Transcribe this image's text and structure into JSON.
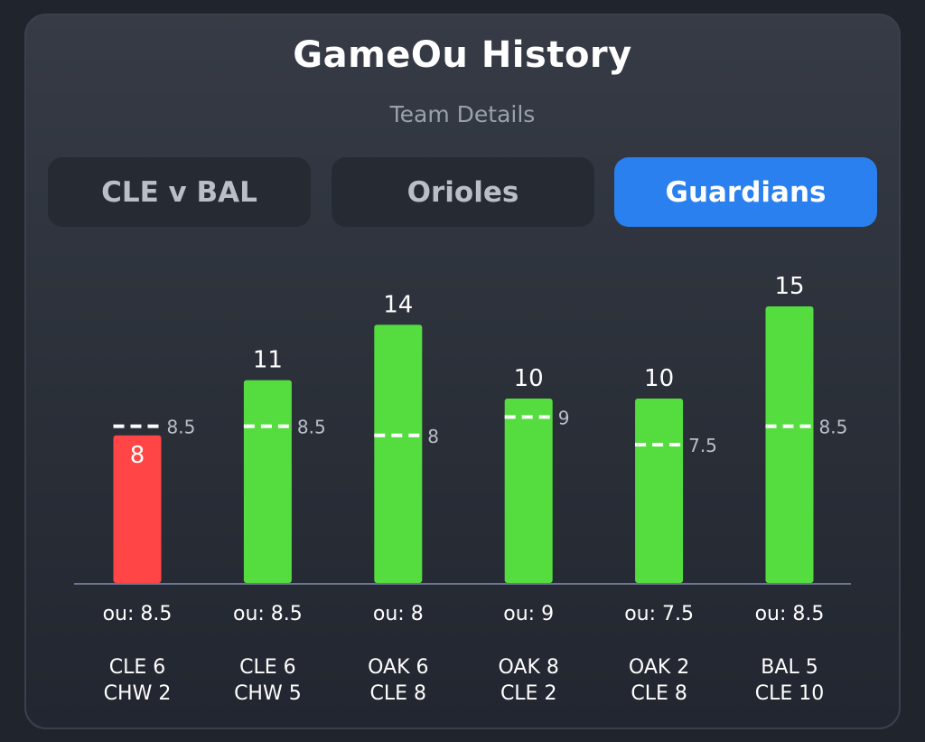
{
  "header": {
    "title": "GameOu History",
    "subtitle": "Team Details"
  },
  "tabs": [
    {
      "label": "CLE v BAL",
      "active": false
    },
    {
      "label": "Orioles",
      "active": false
    },
    {
      "label": "Guardians",
      "active": true
    }
  ],
  "colors": {
    "over": "#55dd40",
    "under": "#ff4545",
    "active_tab": "#2a80ef"
  },
  "chart_data": {
    "type": "bar",
    "categories": [
      {
        "ou_label": "ou: 8.5",
        "line1": "CLE 6",
        "line2": "CHW 2"
      },
      {
        "ou_label": "ou: 8.5",
        "line1": "CLE 6",
        "line2": "CHW 5"
      },
      {
        "ou_label": "ou: 8",
        "line1": "OAK 6",
        "line2": "CLE 8"
      },
      {
        "ou_label": "ou: 9",
        "line1": "OAK 8",
        "line2": "CLE 2"
      },
      {
        "ou_label": "ou: 7.5",
        "line1": "OAK 2",
        "line2": "CLE 8"
      },
      {
        "ou_label": "ou: 8.5",
        "line1": "BAL 5",
        "line2": "CLE 10"
      }
    ],
    "values": [
      8,
      11,
      14,
      10,
      10,
      15
    ],
    "value_labels": [
      "8",
      "11",
      "14",
      "10",
      "10",
      "15"
    ],
    "ou_lines": [
      8.5,
      8.5,
      8,
      9,
      7.5,
      8.5
    ],
    "ou_line_labels": [
      "8.5",
      "8.5",
      "8",
      "9",
      "7.5",
      "8.5"
    ],
    "results": [
      "under",
      "over",
      "over",
      "over",
      "over",
      "over"
    ],
    "ylim": [
      0,
      15
    ],
    "grid": false
  }
}
